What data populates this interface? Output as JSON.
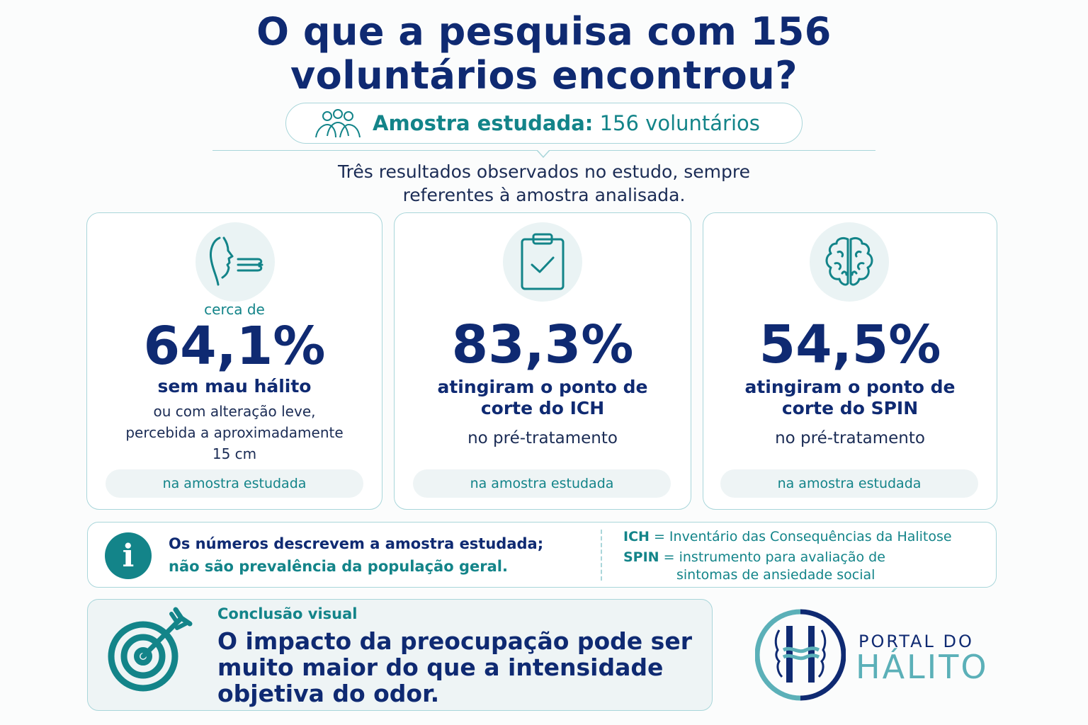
{
  "title": {
    "line1": "O que a pesquisa com 156",
    "line2": "voluntários encontrou?"
  },
  "sample": {
    "label": "Amostra estudada:",
    "value": "156 voluntários",
    "icon": "people-group-icon"
  },
  "subtitle": {
    "line1": "Três resultados observados no estudo, sempre",
    "line2": "referentes à amostra analisada."
  },
  "cards": [
    {
      "icon": "face-breath-icon",
      "kicker": "cerca de",
      "value": "64,1%",
      "headline": [
        "sem mau hálito"
      ],
      "description": [
        "ou com alteração leve,",
        "percebida a aproximadamente",
        "15 cm"
      ],
      "footer": "na amostra estudada"
    },
    {
      "icon": "clipboard-check-icon",
      "value": "83,3%",
      "headline": [
        "atingiram o ponto de",
        "corte do ICH"
      ],
      "description": [
        "no pré-tratamento"
      ],
      "footer": "na amostra estudada"
    },
    {
      "icon": "brain-icon",
      "value": "54,5%",
      "headline": [
        "atingiram o ponto de",
        "corte do SPIN"
      ],
      "description": [
        "no pré-tratamento"
      ],
      "footer": "na amostra estudada"
    }
  ],
  "info": {
    "icon": "info-icon",
    "line1": "Os números descrevem a amostra estudada;",
    "line2": "não são prevalência da população geral.",
    "glossary": [
      {
        "term": "ICH",
        "sep": " = ",
        "definition": "Inventário das Consequências da Halitose"
      },
      {
        "term": "SPIN",
        "sep": " = ",
        "definition": "instrumento para avaliação de",
        "continuation": "sintomas de ansiedade social"
      }
    ]
  },
  "conclusion": {
    "icon": "target-arrow-icon",
    "label": "Conclusão visual",
    "lines": [
      "O impacto da preocupação pode ser",
      "muito maior do que a intensidade",
      "objetiva do odor."
    ]
  },
  "logo": {
    "line1": "PORTAL DO",
    "line2": "HÁLITO"
  },
  "colors": {
    "navy": "#0f2a72",
    "teal": "#138489",
    "border": "#a9d6da",
    "icon_bg": "#eaf3f4"
  }
}
